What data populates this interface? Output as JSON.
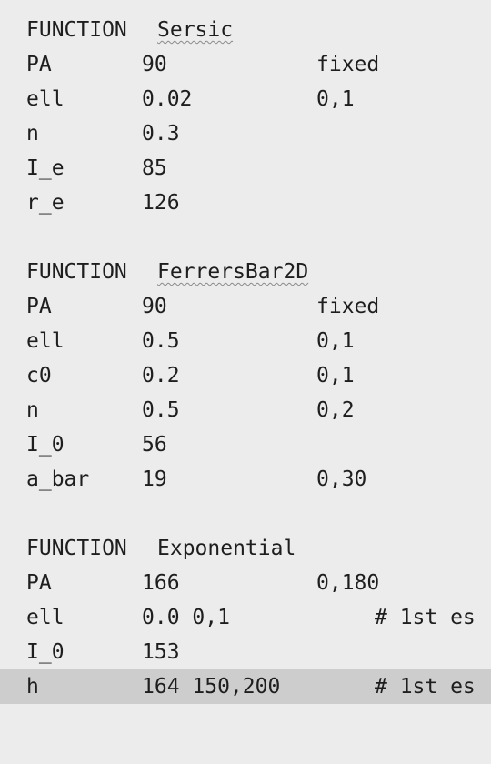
{
  "blocks": [
    {
      "keyword": "FUNCTION",
      "name": "Sersic",
      "spellcheck": true,
      "params": [
        {
          "name": "PA",
          "value": "90",
          "limits": "fixed",
          "comment": ""
        },
        {
          "name": "ell",
          "value": "0.02",
          "limits": "0,1",
          "comment": ""
        },
        {
          "name": "n",
          "value": "0.3",
          "limits": "",
          "comment": ""
        },
        {
          "name": "I_e",
          "value": "85",
          "limits": "",
          "comment": ""
        },
        {
          "name": "r_e",
          "value": "126",
          "limits": "",
          "comment": ""
        }
      ]
    },
    {
      "keyword": "FUNCTION",
      "name": "FerrersBar2D",
      "spellcheck": true,
      "params": [
        {
          "name": "PA",
          "value": "90",
          "limits": "fixed",
          "comment": ""
        },
        {
          "name": "ell",
          "value": "0.5",
          "limits": "0,1",
          "comment": ""
        },
        {
          "name": "c0",
          "value": "0.2",
          "limits": "0,1",
          "comment": ""
        },
        {
          "name": "n",
          "value": "0.5",
          "limits": "0,2",
          "comment": ""
        },
        {
          "name": "I_0",
          "value": "56",
          "limits": "",
          "comment": ""
        },
        {
          "name": "a_bar",
          "value": "19",
          "limits": "0,30",
          "comment": ""
        }
      ]
    },
    {
      "keyword": "FUNCTION",
      "name": "Exponential",
      "spellcheck": false,
      "params": [
        {
          "name": "PA",
          "value": "166",
          "limits": "0,180",
          "comment": ""
        },
        {
          "name": "ell",
          "value": "0.0 0,1",
          "limits": "",
          "comment": "# 1st es"
        },
        {
          "name": "I_0",
          "value": "153",
          "limits": "",
          "comment": ""
        },
        {
          "name": "h",
          "value": "164 150,200",
          "limits": "",
          "comment": "# 1st es",
          "highlighted": true
        }
      ]
    }
  ]
}
